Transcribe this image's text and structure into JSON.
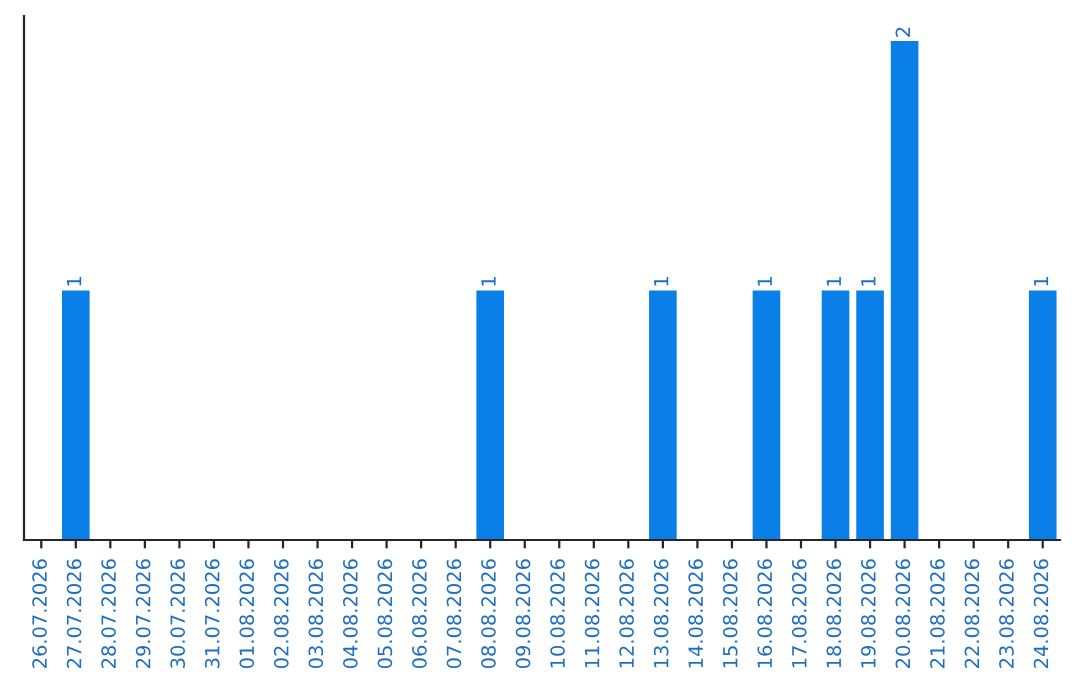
{
  "chart_data": {
    "type": "bar",
    "categories": [
      "26.07.2026",
      "27.07.2026",
      "28.07.2026",
      "29.07.2026",
      "30.07.2026",
      "31.07.2026",
      "01.08.2026",
      "02.08.2026",
      "03.08.2026",
      "04.08.2026",
      "05.08.2026",
      "06.08.2026",
      "07.08.2026",
      "08.08.2026",
      "09.08.2026",
      "10.08.2026",
      "11.08.2026",
      "12.08.2026",
      "13.08.2026",
      "14.08.2026",
      "15.08.2026",
      "16.08.2026",
      "17.08.2026",
      "18.08.2026",
      "19.08.2026",
      "20.08.2026",
      "21.08.2026",
      "22.08.2026",
      "23.08.2026",
      "24.08.2026"
    ],
    "values": [
      0,
      1,
      0,
      0,
      0,
      0,
      0,
      0,
      0,
      0,
      0,
      0,
      0,
      1,
      0,
      0,
      0,
      0,
      1,
      0,
      0,
      1,
      0,
      1,
      1,
      2,
      0,
      0,
      0,
      1
    ],
    "value_labels": [
      null,
      "1",
      null,
      null,
      null,
      null,
      null,
      null,
      null,
      null,
      null,
      null,
      null,
      "1",
      null,
      null,
      null,
      null,
      "1",
      null,
      null,
      "1",
      null,
      "1",
      "1",
      "2",
      null,
      null,
      null,
      "1"
    ],
    "color": "#0a7fe8",
    "ylim": [
      0,
      2.1
    ],
    "tick_labels": "x",
    "grid": false,
    "legend": false
  }
}
